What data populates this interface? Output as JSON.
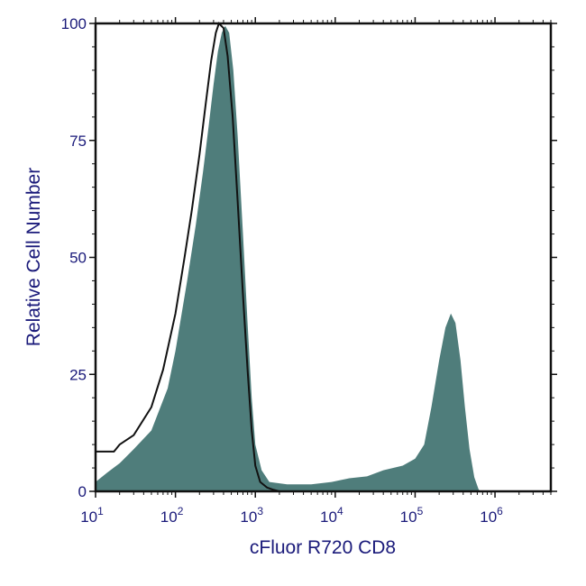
{
  "chart_data": {
    "type": "area",
    "xlabel": "cFluor R720 CD8",
    "ylabel": "Relative Cell Number",
    "x_scale": "log10",
    "xlim": [
      10,
      5000000
    ],
    "ylim": [
      0,
      100
    ],
    "y_ticks": [
      "0",
      "25",
      "50",
      "75",
      "100"
    ],
    "x_ticks": [
      {
        "base": "10",
        "exp": "1"
      },
      {
        "base": "10",
        "exp": "2"
      },
      {
        "base": "10",
        "exp": "3"
      },
      {
        "base": "10",
        "exp": "4"
      },
      {
        "base": "10",
        "exp": "5"
      },
      {
        "base": "10",
        "exp": "6"
      }
    ],
    "grid": false,
    "series": [
      {
        "style": "filled",
        "color": "#4f7d7b",
        "points": [
          [
            10,
            2
          ],
          [
            14,
            4
          ],
          [
            20,
            6
          ],
          [
            30,
            9
          ],
          [
            50,
            13
          ],
          [
            80,
            22
          ],
          [
            100,
            30
          ],
          [
            140,
            45
          ],
          [
            180,
            57
          ],
          [
            220,
            68
          ],
          [
            260,
            78
          ],
          [
            300,
            87
          ],
          [
            340,
            94
          ],
          [
            380,
            98
          ],
          [
            420,
            99.5
          ],
          [
            470,
            98
          ],
          [
            530,
            90
          ],
          [
            600,
            76
          ],
          [
            700,
            55
          ],
          [
            800,
            36
          ],
          [
            900,
            20
          ],
          [
            1000,
            10
          ],
          [
            1200,
            4.5
          ],
          [
            1500,
            2
          ],
          [
            2500,
            1.5
          ],
          [
            5000,
            1.5
          ],
          [
            9000,
            2
          ],
          [
            15000,
            2.8
          ],
          [
            25000,
            3.2
          ],
          [
            40000,
            4.5
          ],
          [
            70000,
            5.5
          ],
          [
            100000,
            7
          ],
          [
            130000,
            10
          ],
          [
            160000,
            18
          ],
          [
            200000,
            28
          ],
          [
            240000,
            35
          ],
          [
            280000,
            38
          ],
          [
            320000,
            36
          ],
          [
            370000,
            28
          ],
          [
            420000,
            18
          ],
          [
            480000,
            9
          ],
          [
            550000,
            3
          ],
          [
            620000,
            0.5
          ],
          [
            650000,
            0
          ]
        ]
      },
      {
        "style": "outline",
        "color": "#111111",
        "points": [
          [
            10,
            8.5
          ],
          [
            17,
            8.5
          ],
          [
            20,
            10
          ],
          [
            30,
            12
          ],
          [
            50,
            18
          ],
          [
            70,
            26
          ],
          [
            100,
            38
          ],
          [
            130,
            50
          ],
          [
            160,
            60
          ],
          [
            200,
            72
          ],
          [
            240,
            83
          ],
          [
            280,
            92
          ],
          [
            320,
            98
          ],
          [
            350,
            100
          ],
          [
            400,
            99
          ],
          [
            450,
            93
          ],
          [
            520,
            80
          ],
          [
            600,
            62
          ],
          [
            700,
            42
          ],
          [
            800,
            26
          ],
          [
            900,
            13
          ],
          [
            1000,
            5.5
          ],
          [
            1150,
            2
          ],
          [
            1400,
            0.8
          ],
          [
            1700,
            0.3
          ],
          [
            2000,
            0
          ]
        ]
      }
    ]
  }
}
